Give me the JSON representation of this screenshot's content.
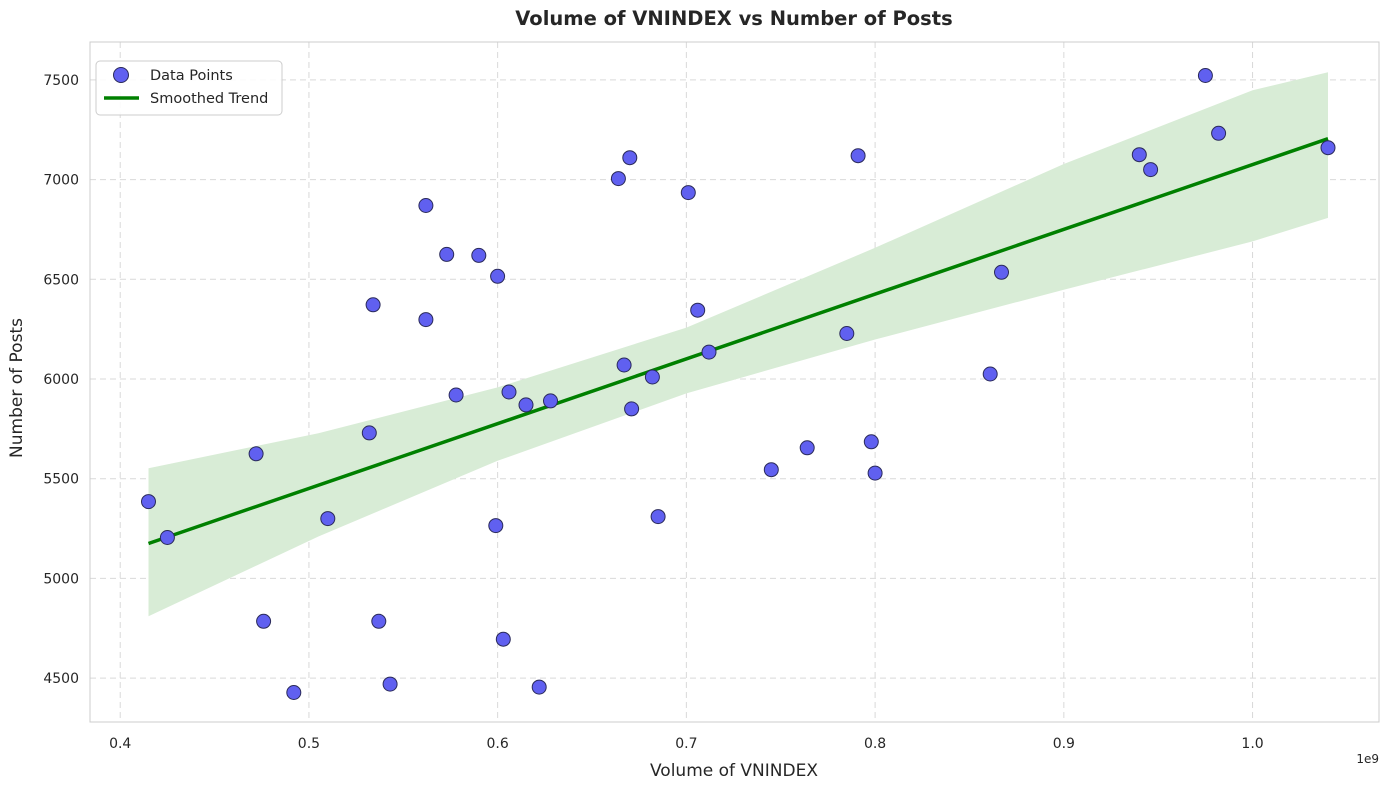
{
  "chart_data": {
    "type": "scatter",
    "title": "Volume of VNINDEX vs Number of Posts",
    "xlabel": "Volume of VNINDEX",
    "ylabel": "Number of Posts",
    "x_offset_label": "1e9",
    "xlim": [
      0.384,
      1.067
    ],
    "ylim": [
      4280,
      7690
    ],
    "x_ticks": [
      0.4,
      0.5,
      0.6,
      0.7,
      0.8,
      0.9,
      1.0
    ],
    "x_tick_labels": [
      "0.4",
      "0.5",
      "0.6",
      "0.7",
      "0.8",
      "0.9",
      "1.0"
    ],
    "y_ticks": [
      4500,
      5000,
      5500,
      6000,
      6500,
      7000,
      7500
    ],
    "y_tick_labels": [
      "4500",
      "5000",
      "5500",
      "6000",
      "6500",
      "7000",
      "7500"
    ],
    "grid": true,
    "legend_position": "top-left",
    "colors": {
      "points": "#6060f0",
      "point_edge": "#2a2a5a",
      "trend": "#008000",
      "band": "#d8ecd6",
      "grid": "#d9d9d9",
      "axis": "#cccccc"
    },
    "series": [
      {
        "name": "Data Points",
        "kind": "scatter",
        "points": [
          [
            0.415,
            5385
          ],
          [
            0.425,
            5205
          ],
          [
            0.472,
            5625
          ],
          [
            0.476,
            4785
          ],
          [
            0.492,
            4428
          ],
          [
            0.51,
            5300
          ],
          [
            0.532,
            5730
          ],
          [
            0.534,
            6372
          ],
          [
            0.537,
            4785
          ],
          [
            0.543,
            4470
          ],
          [
            0.562,
            6870
          ],
          [
            0.562,
            6298
          ],
          [
            0.573,
            6625
          ],
          [
            0.578,
            5920
          ],
          [
            0.59,
            6620
          ],
          [
            0.599,
            5265
          ],
          [
            0.6,
            6515
          ],
          [
            0.603,
            4695
          ],
          [
            0.606,
            5935
          ],
          [
            0.615,
            5870
          ],
          [
            0.622,
            4455
          ],
          [
            0.628,
            5890
          ],
          [
            0.664,
            7005
          ],
          [
            0.667,
            6070
          ],
          [
            0.67,
            7110
          ],
          [
            0.671,
            5850
          ],
          [
            0.682,
            6010
          ],
          [
            0.685,
            5310
          ],
          [
            0.701,
            6935
          ],
          [
            0.706,
            6345
          ],
          [
            0.712,
            6135
          ],
          [
            0.745,
            5545
          ],
          [
            0.764,
            5655
          ],
          [
            0.785,
            6228
          ],
          [
            0.791,
            7120
          ],
          [
            0.798,
            5685
          ],
          [
            0.8,
            5528
          ],
          [
            0.861,
            6025
          ],
          [
            0.867,
            6535
          ],
          [
            0.94,
            7125
          ],
          [
            0.946,
            7050
          ],
          [
            0.975,
            7522
          ],
          [
            0.982,
            7232
          ],
          [
            1.04,
            7160
          ]
        ]
      },
      {
        "name": "Smoothed Trend",
        "kind": "line",
        "points": [
          [
            0.415,
            5175
          ],
          [
            1.04,
            7205
          ]
        ],
        "band": [
          [
            0.415,
            4810,
            5552
          ],
          [
            0.505,
            5210,
            5728
          ],
          [
            0.6,
            5590,
            5958
          ],
          [
            0.7,
            5928,
            6258
          ],
          [
            0.8,
            6198,
            6658
          ],
          [
            0.9,
            6448,
            7078
          ],
          [
            1.0,
            6690,
            7448
          ],
          [
            1.04,
            6808,
            7538
          ]
        ]
      }
    ]
  }
}
